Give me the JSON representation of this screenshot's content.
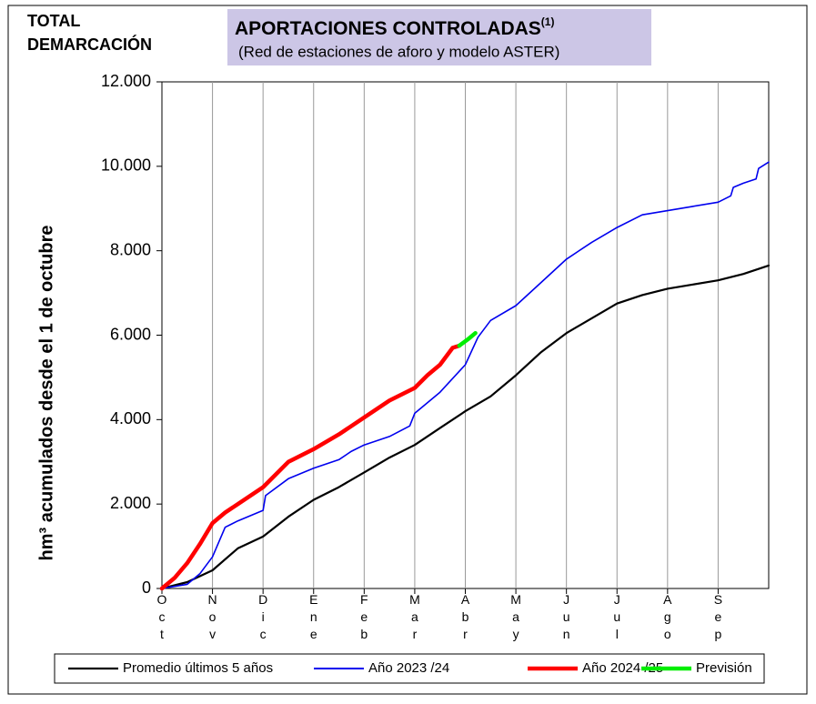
{
  "chart_data": {
    "type": "line",
    "corner_title": "TOTAL\nDEMARCACIÓN",
    "title": "APORTACIONES CONTROLADAS",
    "title_note": "(1)",
    "subtitle": "(Red de estaciones de aforo y modelo ASTER)",
    "y_label": "hm³ acumulados desde el 1 de octubre",
    "categories": [
      "Oct",
      "Nov",
      "Dic",
      "Ene",
      "Feb",
      "Mar",
      "Abr",
      "May",
      "Jun",
      "Jul",
      "Ago",
      "Sep"
    ],
    "xlim": [
      0,
      12
    ],
    "ylim": [
      0,
      12000
    ],
    "yticks": [
      0,
      {
        "value": 2000,
        "label": "2.000"
      },
      {
        "value": 4000,
        "label": "4.000"
      },
      {
        "value": 6000,
        "label": "6.000"
      },
      {
        "value": 8000,
        "label": "8.000"
      },
      {
        "value": 10000,
        "label": "10.000"
      },
      {
        "value": 12000,
        "label": "12.000"
      }
    ],
    "grid": true,
    "legend": "bottom",
    "series": [
      {
        "name": "Promedio últimos 5 años",
        "color": "#000000",
        "width": 2.2,
        "x": [
          0,
          0.5,
          1,
          1.5,
          2,
          2.5,
          3,
          3.5,
          4,
          4.5,
          5,
          5.5,
          6,
          6.5,
          7,
          7.5,
          8,
          8.5,
          9,
          9.5,
          10,
          10.5,
          11,
          11.5,
          12
        ],
        "values": [
          0,
          150,
          430,
          950,
          1230,
          1700,
          2100,
          2400,
          2750,
          3100,
          3400,
          3800,
          4200,
          4550,
          5050,
          5600,
          6050,
          6400,
          6750,
          6950,
          7100,
          7200,
          7300,
          7450,
          7650
        ]
      },
      {
        "name": "Año 2023 /24",
        "color": "#0000ee",
        "width": 1.6,
        "x": [
          0,
          0.5,
          0.75,
          1,
          1.25,
          1.5,
          2,
          2.05,
          2.5,
          3,
          3.5,
          3.75,
          4,
          4.5,
          4.9,
          5,
          5.5,
          6,
          6.25,
          6.5,
          7,
          7.5,
          8,
          8.5,
          9,
          9.5,
          10,
          10.5,
          11,
          11.25,
          11.3,
          11.5,
          11.75,
          11.8,
          12
        ],
        "values": [
          0,
          100,
          350,
          750,
          1450,
          1600,
          1850,
          2200,
          2600,
          2850,
          3050,
          3250,
          3400,
          3600,
          3850,
          4150,
          4650,
          5300,
          5950,
          6350,
          6700,
          7250,
          7800,
          8200,
          8550,
          8850,
          8950,
          9050,
          9150,
          9300,
          9500,
          9600,
          9700,
          9950,
          10100
        ]
      },
      {
        "name": "Año 2024 /25",
        "color": "#ff0000",
        "width": 4.5,
        "x": [
          0,
          0.25,
          0.5,
          0.75,
          1,
          1.25,
          1.5,
          2,
          2.5,
          3,
          3.5,
          4,
          4.5,
          5,
          5.25,
          5.5,
          5.75,
          5.88
        ],
        "values": [
          0,
          250,
          600,
          1050,
          1550,
          1800,
          2000,
          2400,
          3000,
          3300,
          3650,
          4050,
          4450,
          4750,
          5050,
          5300,
          5700,
          5750
        ]
      },
      {
        "name": "Previsión",
        "color": "#00ee00",
        "width": 4.5,
        "x": [
          5.88,
          6.05,
          6.2
        ],
        "values": [
          5750,
          5900,
          6050
        ]
      }
    ]
  }
}
